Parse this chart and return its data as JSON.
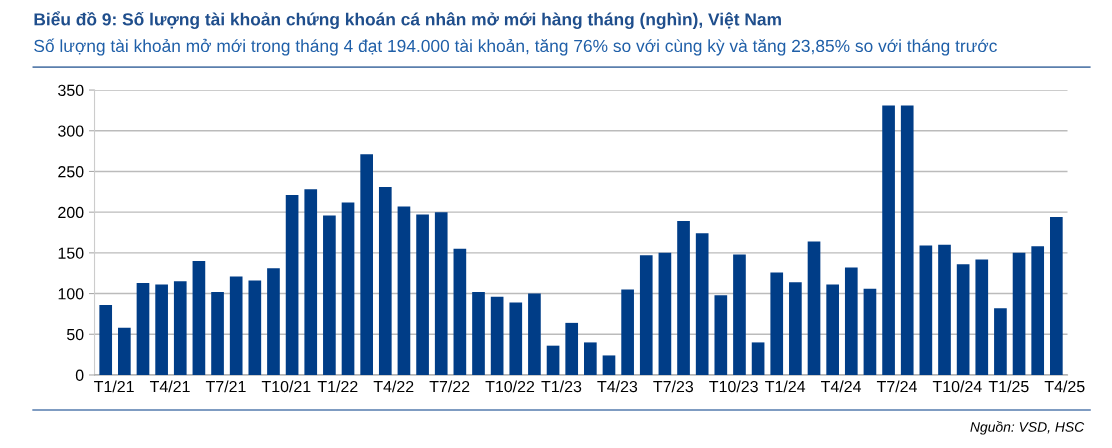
{
  "chart_data": {
    "type": "bar",
    "title": "Biểu đồ 9: Số lượng tài khoản chứng khoán cá nhân mở mới hàng tháng (nghìn), Việt Nam",
    "subtitle": "Số lượng tài khoản mở mới trong tháng 4 đạt 194.000 tài khoản, tăng 76% so với cùng kỳ và tăng 23,85% so với tháng trước",
    "categories": [
      "T1/21",
      null,
      null,
      "T4/21",
      null,
      null,
      "T7/21",
      null,
      null,
      "T10/21",
      null,
      null,
      "T1/22",
      null,
      null,
      "T4/22",
      null,
      null,
      "T7/22",
      null,
      null,
      "T10/22",
      null,
      null,
      "T1/23",
      null,
      null,
      "T4/23",
      null,
      null,
      "T7/23",
      null,
      null,
      "T10/23",
      null,
      null,
      "T1/24",
      null,
      null,
      "T4/24",
      null,
      null,
      "T7/24",
      null,
      null,
      "T10/24",
      null,
      null,
      "T1/25",
      null,
      null,
      "T4/25"
    ],
    "values": [
      86,
      58,
      113,
      111,
      115,
      140,
      102,
      121,
      116,
      131,
      221,
      228,
      196,
      212,
      271,
      231,
      207,
      197,
      200,
      155,
      102,
      96,
      89,
      100,
      36,
      64,
      40,
      24,
      105,
      147,
      150,
      189,
      174,
      98,
      148,
      40,
      126,
      114,
      164,
      111,
      132,
      106,
      331,
      331,
      159,
      160,
      136,
      142,
      82,
      150,
      158,
      194
    ],
    "color": "#003d87",
    "ylim": [
      0,
      350
    ],
    "yticks": [
      0,
      50,
      100,
      150,
      200,
      250,
      300,
      350
    ],
    "grid": "y",
    "annotations": [
      "Nguồn: VSD, HSC"
    ]
  }
}
